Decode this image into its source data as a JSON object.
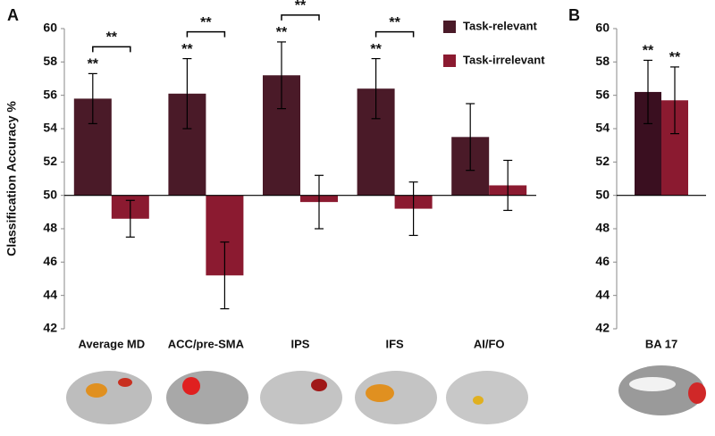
{
  "chart_data": [
    {
      "type": "bar",
      "panel_label": "A",
      "ylabel": "Classification Accuracy %",
      "categories": [
        "Average MD",
        "ACC/pre-SMA",
        "IPS",
        "IFS",
        "AI/FO"
      ],
      "baseline": 50,
      "series": [
        {
          "name": "Task-relevant",
          "color": "#4a1a28",
          "values": [
            55.8,
            56.1,
            57.2,
            56.4,
            53.5
          ],
          "errors": [
            1.5,
            2.1,
            2.0,
            1.8,
            2.0
          ],
          "significance": [
            "**",
            "**",
            "**",
            "**",
            null
          ]
        },
        {
          "name": "Task-irrelevant",
          "color": "#8b1a30",
          "values": [
            48.6,
            45.2,
            49.6,
            49.2,
            50.6
          ],
          "errors": [
            1.1,
            2.0,
            1.6,
            1.6,
            1.5
          ],
          "significance": [
            null,
            null,
            null,
            null,
            null
          ]
        }
      ],
      "bracket_labels": [
        "**",
        "**",
        "**",
        "**",
        null
      ],
      "ylim": [
        42,
        60
      ],
      "yticks": [
        42,
        44,
        46,
        48,
        50,
        52,
        54,
        56,
        58,
        60
      ],
      "legend": "upper right"
    },
    {
      "type": "bar",
      "panel_label": "B",
      "categories": [
        "BA 17"
      ],
      "baseline": 50,
      "series": [
        {
          "color": "#3a0f20",
          "values": [
            56.2
          ],
          "errors": [
            1.9
          ],
          "significance": [
            "**"
          ]
        },
        {
          "color": "#8b1a30",
          "values": [
            55.7
          ],
          "errors": [
            2.0
          ],
          "significance": [
            "**"
          ]
        }
      ],
      "ylim": [
        42,
        60
      ],
      "yticks": [
        42,
        44,
        46,
        48,
        50,
        52,
        54,
        56,
        58,
        60
      ]
    }
  ]
}
